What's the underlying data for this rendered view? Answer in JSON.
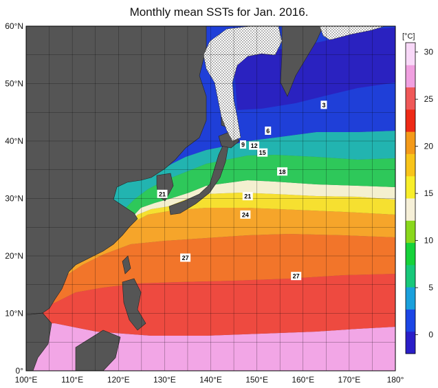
{
  "title": "Monthly mean SSTs for Jan. 2016.",
  "map": {
    "lon_range": [
      100,
      180
    ],
    "lat_range": [
      0,
      60
    ],
    "grid_step_deg": 5
  },
  "axes": {
    "lat_labels": [
      "0°",
      "10°N",
      "20°N",
      "30°N",
      "40°N",
      "50°N",
      "60°N"
    ],
    "lon_labels": [
      "100°E",
      "110°E",
      "120°E",
      "130°E",
      "140°E",
      "150°E",
      "160°E",
      "170°E",
      "180°"
    ]
  },
  "colorbar": {
    "unit": "[°C]",
    "ticks": [
      "0",
      "5",
      "10",
      "15",
      "20",
      "25",
      "30"
    ],
    "tick_values": [
      0,
      5,
      10,
      15,
      20,
      25,
      30
    ],
    "range": [
      -2,
      31
    ],
    "colors": [
      "#2a1ec8",
      "#1c46e6",
      "#1aa0dc",
      "#18c87a",
      "#16d23a",
      "#8ad81c",
      "#f6f0d8",
      "#f8ee2a",
      "#f8c41a",
      "#f49a1a",
      "#ee2a16",
      "#f05858",
      "#f0a0e0",
      "#f8d8f8"
    ]
  },
  "contour_labels": [
    {
      "text": "3",
      "lon": 164.5,
      "lat": 46.3
    },
    {
      "text": "6",
      "lon": 152.4,
      "lat": 41.8
    },
    {
      "text": "9",
      "lon": 147.0,
      "lat": 39.4
    },
    {
      "text": "12",
      "lon": 149.4,
      "lat": 39.2
    },
    {
      "text": "15",
      "lon": 151.2,
      "lat": 38.0
    },
    {
      "text": "18",
      "lon": 155.5,
      "lat": 34.7
    },
    {
      "text": "21",
      "lon": 129.5,
      "lat": 30.8
    },
    {
      "text": "21",
      "lon": 148.0,
      "lat": 30.4
    },
    {
      "text": "24",
      "lon": 147.5,
      "lat": 27.2
    },
    {
      "text": "27",
      "lon": 134.5,
      "lat": 19.7
    },
    {
      "text": "27",
      "lon": 158.5,
      "lat": 16.5
    }
  ]
}
